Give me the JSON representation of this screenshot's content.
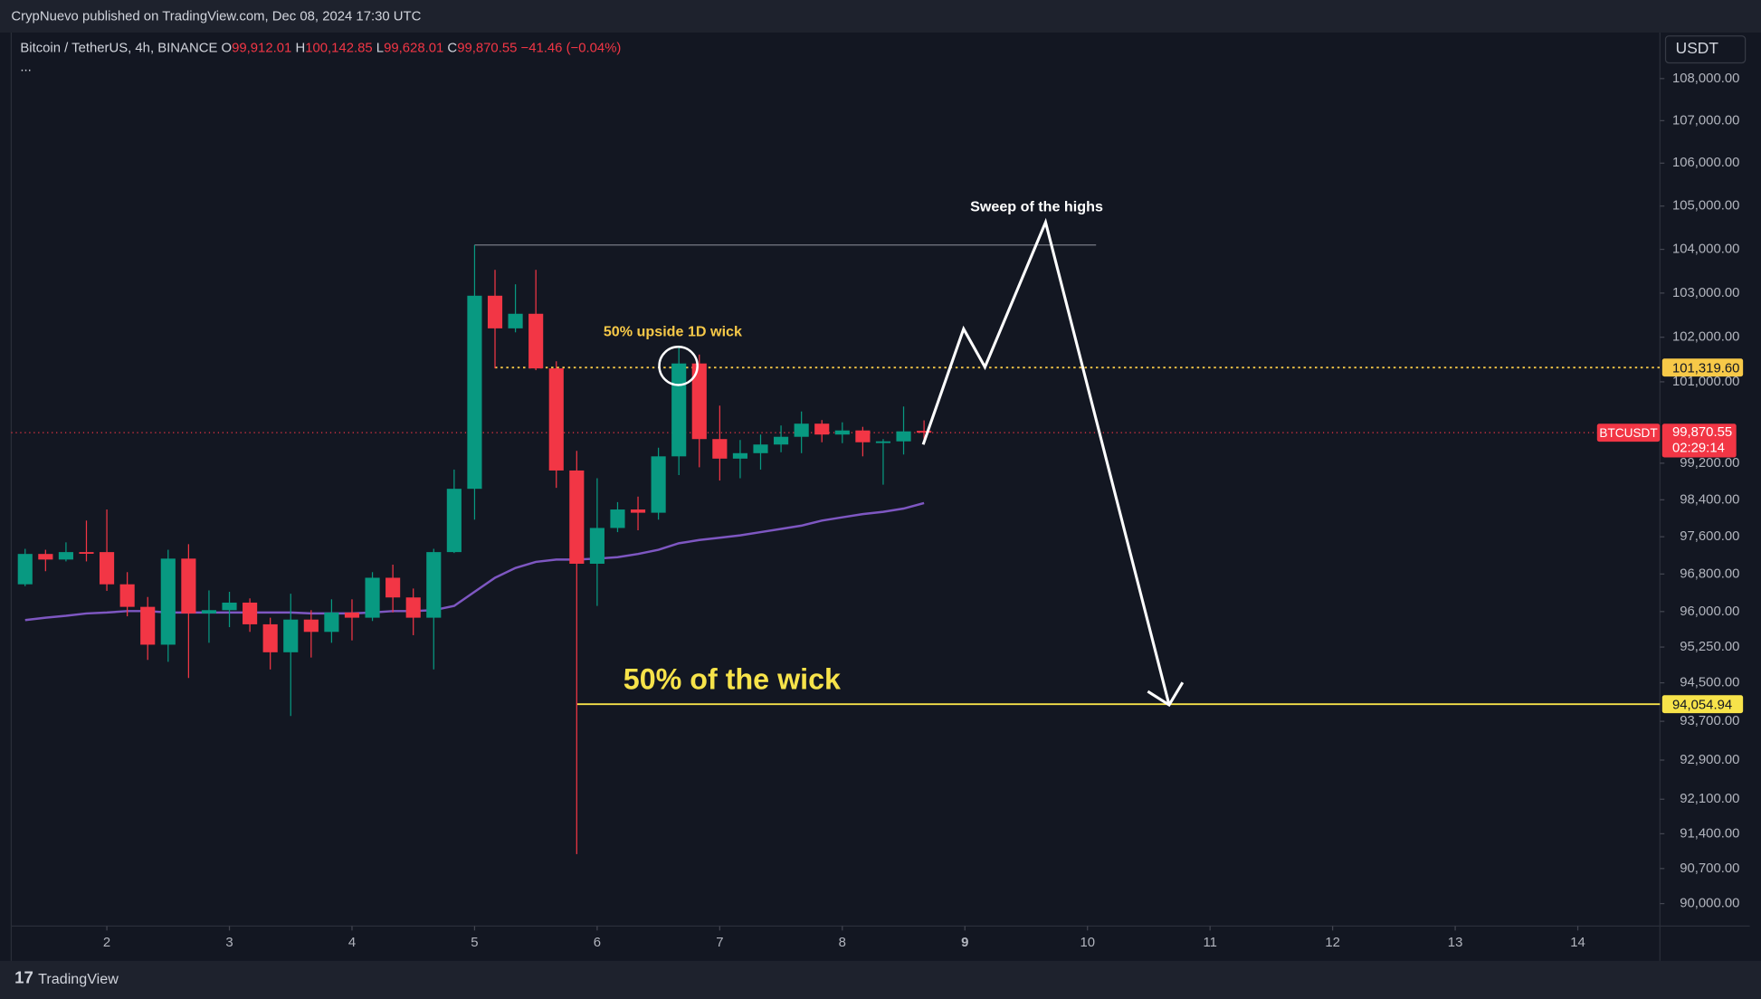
{
  "header": {
    "published": "CrypNuevo published on TradingView.com, Dec 08, 2024 17:30 UTC",
    "symbol": "Bitcoin / TetherUS, 4h, BINANCE",
    "o_key": "O",
    "o": "99,912.01",
    "h_key": "H",
    "h": "100,142.85",
    "l_key": "L",
    "l": "99,628.01",
    "c_key": "C",
    "c": "99,870.55",
    "change": "−41.46 (−0.04%)",
    "more": "...",
    "currency": "USDT"
  },
  "footer": {
    "brand": "TradingView"
  },
  "chart_data": {
    "type": "candlestick",
    "log_scale": true,
    "grid": false,
    "up_color": "#089981",
    "down_color": "#f23645",
    "x": [
      1.3333,
      1.5,
      1.6667,
      1.8333,
      2,
      2.1667,
      2.3333,
      2.5,
      2.6667,
      2.8333,
      3,
      3.1667,
      3.3333,
      3.5,
      3.6667,
      3.8333,
      4,
      4.1667,
      4.3333,
      4.5,
      4.6667,
      4.8333,
      5,
      5.1667,
      5.3333,
      5.5,
      5.6667,
      5.8333,
      6,
      6.1667,
      6.3333,
      6.5,
      6.6667,
      6.8333,
      7,
      7.1667,
      7.3333,
      7.5,
      7.6667,
      7.8333,
      8,
      8.1667,
      8.3333,
      8.5,
      8.6667
    ],
    "open": [
      96580,
      97230,
      97110,
      97270,
      97270,
      96580,
      96100,
      95300,
      97130,
      95960,
      96030,
      96190,
      95730,
      95140,
      95830,
      95570,
      95980,
      95870,
      96720,
      96300,
      95870,
      97270,
      98640,
      102940,
      102200,
      102530,
      101300,
      99040,
      97020,
      97790,
      98190,
      98120,
      99350,
      101410,
      99730,
      99300,
      99420,
      99610,
      99780,
      100070,
      99830,
      99920,
      99660,
      99680,
      99912.01
    ],
    "high": [
      97340,
      97320,
      97480,
      97950,
      98190,
      96840,
      96310,
      97320,
      97440,
      96450,
      96420,
      96280,
      95870,
      96380,
      96030,
      96260,
      96260,
      96840,
      97000,
      96490,
      97340,
      99060,
      104100,
      103530,
      103200,
      103530,
      101460,
      99470,
      98870,
      98350,
      98470,
      99540,
      101810,
      101610,
      100470,
      99710,
      99830,
      100030,
      100340,
      100150,
      100100,
      100000,
      99730,
      100450,
      100142.85
    ],
    "low": [
      96540,
      96860,
      97070,
      97070,
      96440,
      95900,
      94980,
      94940,
      94600,
      95340,
      95670,
      95570,
      94780,
      93810,
      95030,
      95340,
      95390,
      95800,
      95980,
      95500,
      94780,
      97250,
      97970,
      101300,
      102110,
      101260,
      98660,
      90990,
      96120,
      97700,
      97740,
      97970,
      98940,
      99110,
      98820,
      98870,
      99060,
      99440,
      99420,
      99660,
      99640,
      99350,
      98730,
      99390,
      99628.01
    ],
    "close": [
      97230,
      97110,
      97270,
      97250,
      96580,
      96100,
      95300,
      97130,
      95960,
      96030,
      96190,
      95730,
      95140,
      95830,
      95570,
      95980,
      95870,
      96720,
      96300,
      95870,
      97270,
      98640,
      102940,
      102200,
      102530,
      101300,
      99040,
      97020,
      97790,
      98190,
      98120,
      99350,
      101410,
      99730,
      99300,
      99420,
      99610,
      99780,
      100070,
      99830,
      99920,
      99660,
      99680,
      99900,
      99870.55
    ],
    "ma": {
      "color": "#7e57c2",
      "values": [
        95820,
        95870,
        95910,
        95960,
        95980,
        96010,
        96010,
        95980,
        95980,
        95980,
        95980,
        95980,
        95980,
        95980,
        95960,
        95960,
        95960,
        95980,
        96010,
        96010,
        96030,
        96120,
        96420,
        96720,
        96930,
        97060,
        97110,
        97110,
        97130,
        97160,
        97230,
        97320,
        97460,
        97530,
        97580,
        97630,
        97700,
        97770,
        97840,
        97950,
        98020,
        98090,
        98140,
        98210,
        98330
      ]
    },
    "xlim": [
      1.22,
      14.67
    ],
    "ylim": [
      89555,
      109077
    ],
    "xticks": [
      2,
      3,
      4,
      5,
      6,
      7,
      8,
      9,
      10,
      11,
      12,
      13,
      14
    ],
    "yticks": [
      {
        "value": 108000,
        "label": "108,000.00"
      },
      {
        "value": 107000,
        "label": "107,000.00"
      },
      {
        "value": 106000,
        "label": "106,000.00"
      },
      {
        "value": 105000,
        "label": "105,000.00"
      },
      {
        "value": 104000,
        "label": "104,000.00"
      },
      {
        "value": 103000,
        "label": "103,000.00"
      },
      {
        "value": 102000,
        "label": "102,000.00"
      },
      {
        "value": 101000,
        "label": "101,000.00"
      },
      {
        "value": 99200,
        "label": "99,200.00"
      },
      {
        "value": 98400,
        "label": "98,400.00"
      },
      {
        "value": 97600,
        "label": "97,600.00"
      },
      {
        "value": 96800,
        "label": "96,800.00"
      },
      {
        "value": 96000,
        "label": "96,000.00"
      },
      {
        "value": 95250,
        "label": "95,250.00"
      },
      {
        "value": 94500,
        "label": "94,500.00"
      },
      {
        "value": 93700,
        "label": "93,700.00"
      },
      {
        "value": 92900,
        "label": "92,900.00"
      },
      {
        "value": 92100,
        "label": "92,100.00"
      },
      {
        "value": 91400,
        "label": "91,400.00"
      },
      {
        "value": 90700,
        "label": "90,700.00"
      },
      {
        "value": 90000,
        "label": "90,000.00"
      }
    ],
    "high_line": {
      "value": 104100,
      "x_start": 5,
      "x_end": 10.07,
      "color": "#787b86"
    },
    "upside_level": {
      "value": 101319.6,
      "label": "101,319.60",
      "x_start": 5.1667,
      "color": "#f7c948"
    },
    "wick_level": {
      "value": 94054.94,
      "label": "94,054.94",
      "x_start": 5.8333,
      "color": "#f7e34a"
    },
    "last_price": {
      "value": 99870.55,
      "label": "99,870.55",
      "symbol": "BTCUSDT",
      "countdown": "02:29:14",
      "color": "#f23645"
    },
    "annotations": {
      "sweep": "Sweep of the highs",
      "upside": "50% upside 1D wick",
      "wick": "50% of the wick"
    }
  }
}
